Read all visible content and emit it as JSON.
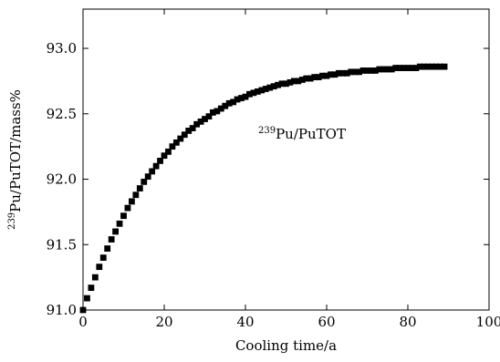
{
  "chart_data": {
    "type": "scatter",
    "title": "",
    "xlabel": "Cooling time/a",
    "ylabel": "Pu/PuTOT/mass%",
    "ylabel_sup": "239",
    "xlim": [
      0,
      100
    ],
    "ylim": [
      91.0,
      93.3
    ],
    "x_ticks": [
      0,
      20,
      40,
      60,
      80,
      100
    ],
    "x_tick_labels": [
      "0",
      "20",
      "40",
      "60",
      "80",
      "100"
    ],
    "y_ticks": [
      91.0,
      91.5,
      92.0,
      92.5,
      93.0
    ],
    "y_tick_labels": [
      "91.0",
      "91.5",
      "92.0",
      "92.5",
      "93.0"
    ],
    "grid": false,
    "annotation": {
      "sup": "239",
      "text": "Pu/PuTOT"
    },
    "marker": "filled-square",
    "marker_color": "#000000",
    "series": [
      {
        "x": [
          0,
          1,
          2,
          3,
          4,
          5,
          6,
          7,
          8,
          9,
          10,
          11,
          12,
          13,
          14,
          15,
          16,
          17,
          18,
          19,
          20,
          21,
          22,
          23,
          24,
          25,
          26,
          27,
          28,
          29,
          30,
          31,
          32,
          33,
          34,
          35,
          36,
          37,
          38,
          39,
          40,
          41,
          42,
          43,
          44,
          45,
          46,
          47,
          48,
          49,
          50,
          51,
          52,
          53,
          54,
          55,
          56,
          57,
          58,
          59,
          60,
          61,
          62,
          63,
          64,
          65,
          66,
          67,
          68,
          69,
          70,
          71,
          72,
          73,
          74,
          75,
          76,
          77,
          78,
          79,
          80,
          81,
          82,
          83,
          84,
          85,
          86,
          87,
          88,
          89
        ],
        "y": [
          91.0,
          91.09,
          91.17,
          91.25,
          91.33,
          91.4,
          91.47,
          91.54,
          91.6,
          91.66,
          91.72,
          91.78,
          91.83,
          91.88,
          91.93,
          91.98,
          92.02,
          92.06,
          92.1,
          92.14,
          92.18,
          92.21,
          92.25,
          92.28,
          92.31,
          92.34,
          92.37,
          92.39,
          92.42,
          92.44,
          92.46,
          92.48,
          92.51,
          92.52,
          92.54,
          92.56,
          92.58,
          92.59,
          92.61,
          92.62,
          92.63,
          92.65,
          92.66,
          92.67,
          92.68,
          92.69,
          92.7,
          92.71,
          92.72,
          92.73,
          92.73,
          92.74,
          92.75,
          92.75,
          92.76,
          92.77,
          92.77,
          92.78,
          92.78,
          92.79,
          92.79,
          92.8,
          92.8,
          92.81,
          92.81,
          92.81,
          92.82,
          92.82,
          92.82,
          92.83,
          92.83,
          92.83,
          92.83,
          92.84,
          92.84,
          92.84,
          92.84,
          92.85,
          92.85,
          92.85,
          92.85,
          92.85,
          92.85,
          92.86,
          92.86,
          92.86,
          92.86,
          92.86,
          92.86,
          92.86
        ]
      }
    ]
  }
}
